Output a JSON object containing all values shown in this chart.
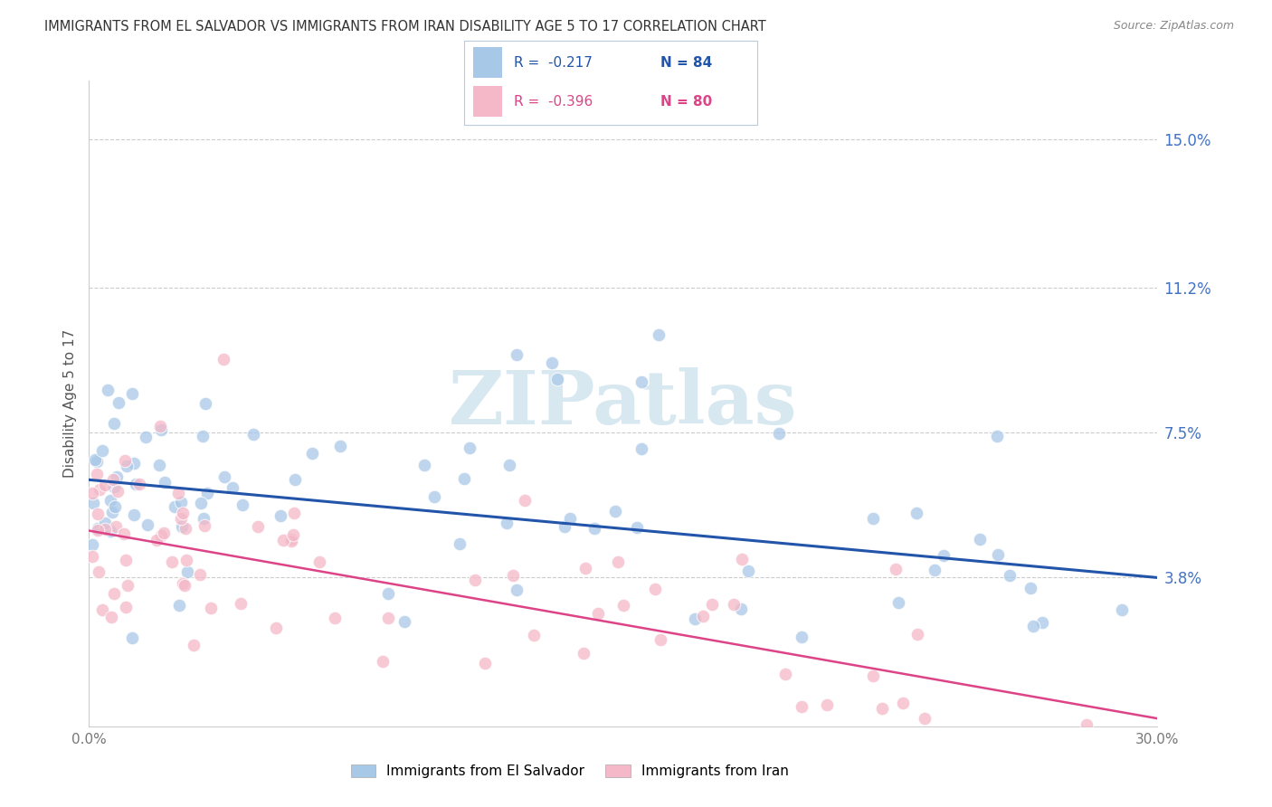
{
  "title": "IMMIGRANTS FROM EL SALVADOR VS IMMIGRANTS FROM IRAN DISABILITY AGE 5 TO 17 CORRELATION CHART",
  "source": "Source: ZipAtlas.com",
  "ylabel": "Disability Age 5 to 17",
  "ytick_labels": [
    "15.0%",
    "11.2%",
    "7.5%",
    "3.8%"
  ],
  "ytick_values": [
    0.15,
    0.112,
    0.075,
    0.038
  ],
  "xlim": [
    0.0,
    0.3
  ],
  "ylim": [
    0.0,
    0.165
  ],
  "legend_blue_r": "R =  -0.217",
  "legend_blue_n": "N = 84",
  "legend_pink_r": "R =  -0.396",
  "legend_pink_n": "N = 80",
  "label_blue": "Immigrants from El Salvador",
  "label_pink": "Immigrants from Iran",
  "color_blue": "#a8c8e8",
  "color_pink": "#f4b8c8",
  "line_blue": "#2255aa",
  "line_pink": "#dd4488",
  "blue_line_x": [
    0.0,
    0.3
  ],
  "blue_line_y": [
    0.063,
    0.038
  ],
  "pink_line_x": [
    0.0,
    0.3
  ],
  "pink_line_y": [
    0.05,
    0.002
  ],
  "bg_color": "#ffffff",
  "grid_color": "#cccccc",
  "title_color": "#333333",
  "watermark": "ZIPatlas",
  "watermark_color": "#d8e8f0"
}
